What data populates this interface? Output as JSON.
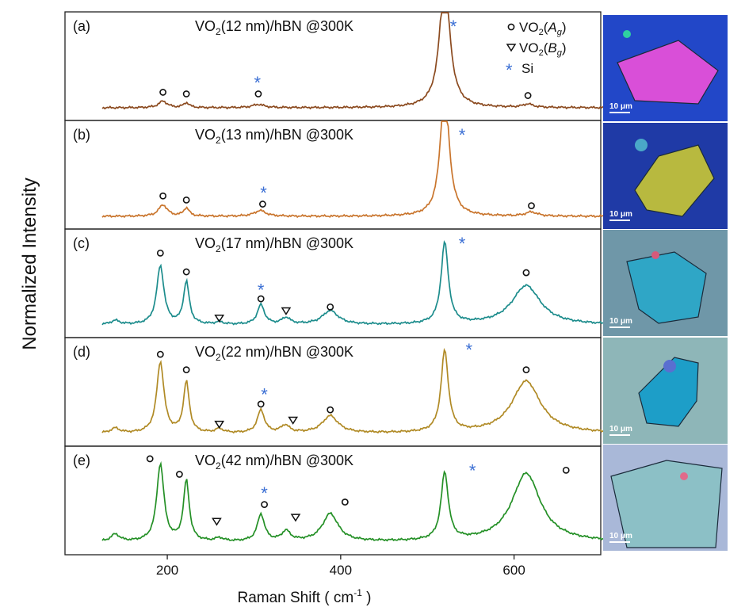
{
  "chart_data": {
    "type": "line",
    "ylabel": "Normalized Intensity",
    "xlabel_main": "Raman Shift ( cm",
    "xlabel_sup": "-1",
    "xlabel_end": " )",
    "xlim": [
      82,
      700
    ],
    "xticks": [
      "200",
      "400",
      "600"
    ],
    "xtick_values": [
      200,
      400,
      600
    ],
    "legend": {
      "ag_label": "VO",
      "ag_sub": "2",
      "ag_open": "(",
      "ag_mode": "A",
      "ag_mode_sub": "g",
      "ag_close": ")",
      "bg_label": "VO",
      "bg_sub": "2",
      "bg_open": "(",
      "bg_mode": "B",
      "bg_mode_sub": "g",
      "bg_close": ")",
      "si_label": "Si",
      "star": "*"
    },
    "panels": [
      {
        "tag": "(a)",
        "title_pre": "VO",
        "title_sub": "2",
        "title_post": "(12 nm)/hBN  @300K",
        "color": "#8b4a1f",
        "peaks": [
          [
            195,
            0.08,
            6
          ],
          [
            222,
            0.06,
            4
          ],
          [
            305,
            0.04,
            8
          ],
          [
            520,
            1.6,
            7
          ],
          [
            616,
            0.04,
            7
          ]
        ],
        "ag_markers": [
          [
            195,
            0.19
          ],
          [
            222,
            0.17
          ],
          [
            305,
            0.17
          ],
          [
            616,
            0.15
          ]
        ],
        "bg_markers": [],
        "si_markers": [
          [
            304,
            0.31
          ],
          [
            530,
            1.0
          ]
        ],
        "micro_label": "10 μm"
      },
      {
        "tag": "(b)",
        "title_pre": "VO",
        "title_sub": "2",
        "title_post": "(13 nm)/hBN  @300K",
        "color": "#c9752d",
        "peaks": [
          [
            195,
            0.14,
            6
          ],
          [
            222,
            0.1,
            4
          ],
          [
            307,
            0.07,
            8
          ],
          [
            520,
            1.6,
            6
          ],
          [
            620,
            0.05,
            8
          ]
        ],
        "ag_markers": [
          [
            195,
            0.25
          ],
          [
            222,
            0.2
          ],
          [
            310,
            0.15
          ],
          [
            620,
            0.13
          ]
        ],
        "bg_markers": [],
        "si_markers": [
          [
            311,
            0.29
          ],
          [
            540,
            1.0
          ]
        ],
        "micro_label": "10 μm"
      },
      {
        "tag": "(c)",
        "title_pre": "VO",
        "title_sub": "2",
        "title_post": "(17 nm)/hBN  @300K",
        "color": "#1c8c8c",
        "peaks": [
          [
            140,
            0.05,
            6
          ],
          [
            192,
            0.72,
            5
          ],
          [
            222,
            0.52,
            4
          ],
          [
            260,
            0.03,
            5
          ],
          [
            308,
            0.24,
            5
          ],
          [
            337,
            0.08,
            6
          ],
          [
            388,
            0.17,
            11
          ],
          [
            520,
            1.0,
            5
          ],
          [
            614,
            0.48,
            20
          ]
        ],
        "ag_markers": [
          [
            192,
            0.88
          ],
          [
            222,
            0.65
          ],
          [
            308,
            0.32
          ],
          [
            388,
            0.22
          ],
          [
            614,
            0.64
          ]
        ],
        "bg_markers": [
          [
            260,
            0.08
          ],
          [
            337,
            0.17
          ]
        ],
        "si_markers": [
          [
            308,
            0.43
          ],
          [
            540,
            1.0
          ]
        ],
        "micro_label": "10 μm"
      },
      {
        "tag": "(d)",
        "title_pre": "VO",
        "title_sub": "2",
        "title_post": "(22 nm)/hBN  @300K",
        "color": "#b08a25",
        "peaks": [
          [
            140,
            0.06,
            6
          ],
          [
            192,
            0.87,
            5
          ],
          [
            222,
            0.62,
            4
          ],
          [
            260,
            0.05,
            5
          ],
          [
            308,
            0.28,
            5
          ],
          [
            336,
            0.09,
            6
          ],
          [
            388,
            0.21,
            11
          ],
          [
            520,
            1.0,
            5
          ],
          [
            614,
            0.64,
            20
          ]
        ],
        "ag_markers": [
          [
            192,
            0.97
          ],
          [
            222,
            0.78
          ],
          [
            308,
            0.36
          ],
          [
            388,
            0.29
          ],
          [
            614,
            0.78
          ]
        ],
        "bg_markers": [
          [
            260,
            0.11
          ],
          [
            345,
            0.16
          ]
        ],
        "si_markers": [
          [
            312,
            0.48
          ],
          [
            548,
            1.03
          ]
        ],
        "micro_label": "10 μm"
      },
      {
        "tag": "(e)",
        "title_pre": "VO",
        "title_sub": "2",
        "title_post": "(42 nm)/hBN  @300K",
        "color": "#249026",
        "peaks": [
          [
            140,
            0.09,
            6
          ],
          [
            192,
            0.95,
            5
          ],
          [
            222,
            0.74,
            4
          ],
          [
            260,
            0.04,
            5
          ],
          [
            308,
            0.33,
            5
          ],
          [
            337,
            0.12,
            6
          ],
          [
            388,
            0.34,
            11
          ],
          [
            520,
            0.83,
            5
          ],
          [
            614,
            0.84,
            20
          ]
        ],
        "ag_markers": [
          [
            180,
            1.02
          ],
          [
            214,
            0.83
          ],
          [
            312,
            0.46
          ],
          [
            405,
            0.49
          ],
          [
            660,
            0.88
          ]
        ],
        "bg_markers": [
          [
            257,
            0.25
          ],
          [
            348,
            0.3
          ]
        ],
        "si_markers": [
          [
            312,
            0.6
          ],
          [
            552,
            0.88
          ]
        ],
        "micro_label": "10 μm"
      }
    ]
  },
  "micrographs": [
    {
      "bg": "#2247c8",
      "flake": "#d94fd8",
      "accent": "#2fd0a0"
    },
    {
      "bg": "#1f3aa6",
      "flake": "#b8b93f",
      "accent": "#4aa8c8"
    },
    {
      "bg": "#6f97a8",
      "flake": "#2fa6c6",
      "accent": "#d65a7a"
    },
    {
      "bg": "#8eb6b8",
      "flake": "#1d9ec8",
      "accent": "#5a6fd0"
    },
    {
      "bg": "#a9b8d8",
      "flake": "#8cc0c6",
      "accent": "#e06a8a"
    }
  ]
}
